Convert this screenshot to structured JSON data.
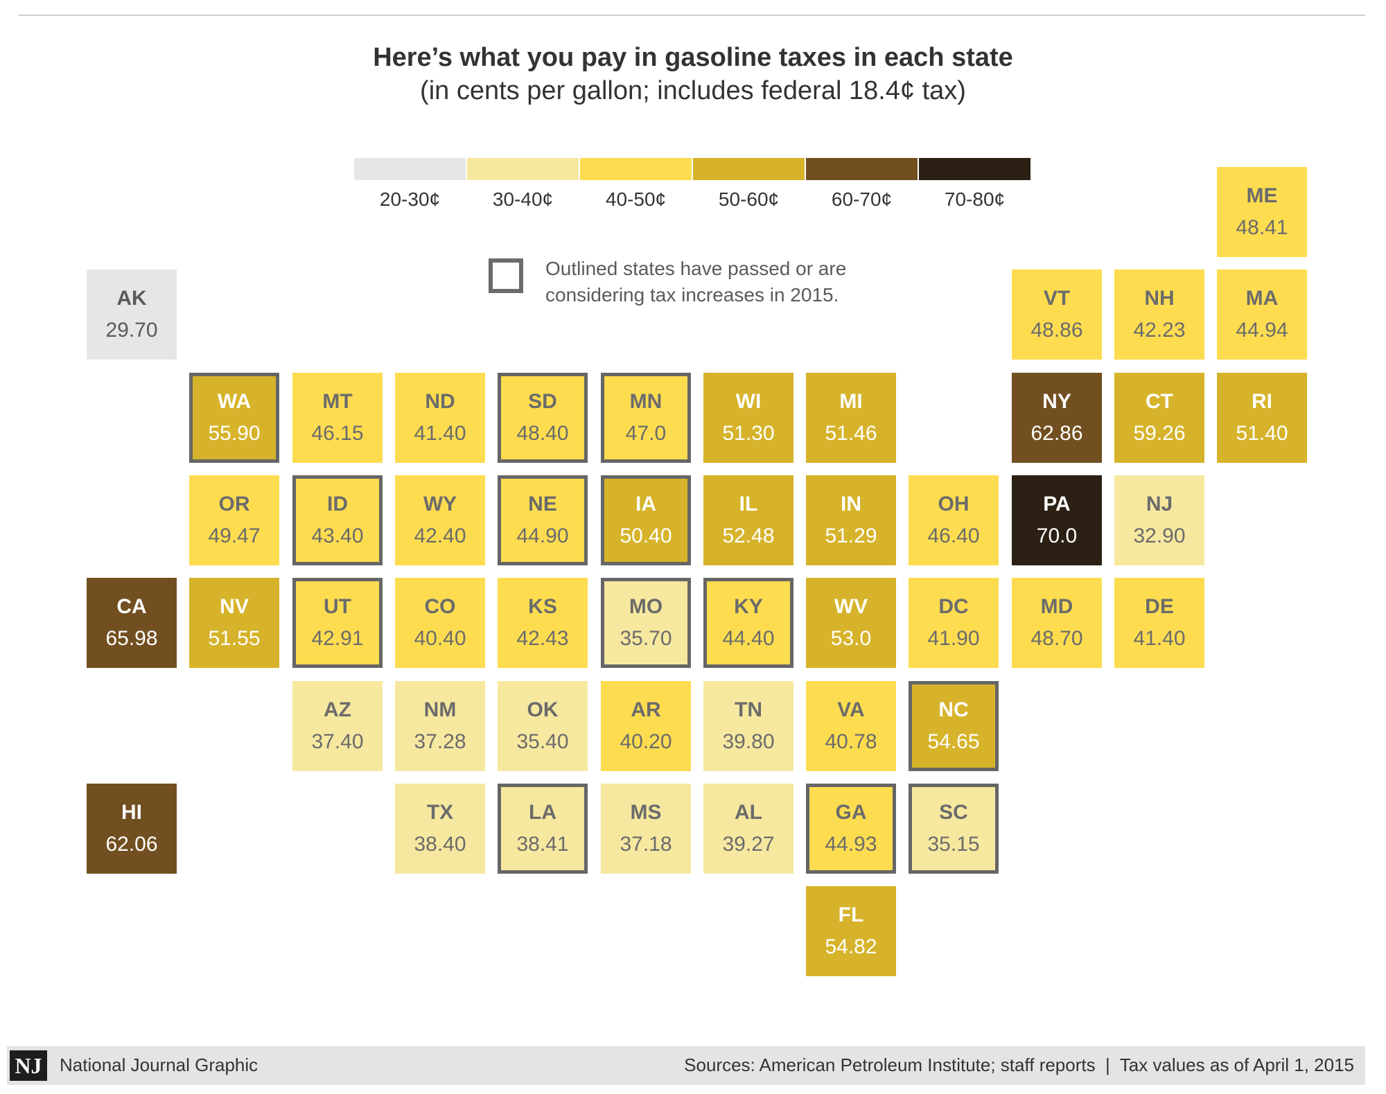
{
  "title": "Here’s what you pay in gasoline taxes in each state",
  "subtitle": "(in cents per gallon; includes federal 18.4¢ tax)",
  "legend": [
    {
      "label": "20-30¢",
      "color": "#e6e6e6"
    },
    {
      "label": "30-40¢",
      "color": "#f7e8a0"
    },
    {
      "label": "40-50¢",
      "color": "#fddc50"
    },
    {
      "label": "50-60¢",
      "color": "#d6b32a"
    },
    {
      "label": "60-70¢",
      "color": "#724f20"
    },
    {
      "label": "70-80¢",
      "color": "#2b2013"
    }
  ],
  "outline_note": "Outlined states have passed or are considering tax increases in 2015.",
  "chart_data": {
    "type": "heatmap",
    "title": "Here’s what you pay in gasoline taxes in each state",
    "unit": "cents per gallon",
    "states": [
      {
        "abbr": "ME",
        "value": "48.41",
        "col": 11,
        "row": 0,
        "outlined": false
      },
      {
        "abbr": "AK",
        "value": "29.70",
        "col": 0,
        "row": 1,
        "outlined": false
      },
      {
        "abbr": "VT",
        "value": "48.86",
        "col": 9,
        "row": 1,
        "outlined": false
      },
      {
        "abbr": "NH",
        "value": "42.23",
        "col": 10,
        "row": 1,
        "outlined": false
      },
      {
        "abbr": "MA",
        "value": "44.94",
        "col": 11,
        "row": 1,
        "outlined": false
      },
      {
        "abbr": "WA",
        "value": "55.90",
        "col": 1,
        "row": 2,
        "outlined": true
      },
      {
        "abbr": "MT",
        "value": "46.15",
        "col": 2,
        "row": 2,
        "outlined": false
      },
      {
        "abbr": "ND",
        "value": "41.40",
        "col": 3,
        "row": 2,
        "outlined": false
      },
      {
        "abbr": "SD",
        "value": "48.40",
        "col": 4,
        "row": 2,
        "outlined": true
      },
      {
        "abbr": "MN",
        "value": "47.0",
        "col": 5,
        "row": 2,
        "outlined": true
      },
      {
        "abbr": "WI",
        "value": "51.30",
        "col": 6,
        "row": 2,
        "outlined": false
      },
      {
        "abbr": "MI",
        "value": "51.46",
        "col": 7,
        "row": 2,
        "outlined": false
      },
      {
        "abbr": "NY",
        "value": "62.86",
        "col": 9,
        "row": 2,
        "outlined": false
      },
      {
        "abbr": "CT",
        "value": "59.26",
        "col": 10,
        "row": 2,
        "outlined": false
      },
      {
        "abbr": "RI",
        "value": "51.40",
        "col": 11,
        "row": 2,
        "outlined": false
      },
      {
        "abbr": "OR",
        "value": "49.47",
        "col": 1,
        "row": 3,
        "outlined": false
      },
      {
        "abbr": "ID",
        "value": "43.40",
        "col": 2,
        "row": 3,
        "outlined": true
      },
      {
        "abbr": "WY",
        "value": "42.40",
        "col": 3,
        "row": 3,
        "outlined": false
      },
      {
        "abbr": "NE",
        "value": "44.90",
        "col": 4,
        "row": 3,
        "outlined": true
      },
      {
        "abbr": "IA",
        "value": "50.40",
        "col": 5,
        "row": 3,
        "outlined": true
      },
      {
        "abbr": "IL",
        "value": "52.48",
        "col": 6,
        "row": 3,
        "outlined": false
      },
      {
        "abbr": "IN",
        "value": "51.29",
        "col": 7,
        "row": 3,
        "outlined": false
      },
      {
        "abbr": "OH",
        "value": "46.40",
        "col": 8,
        "row": 3,
        "outlined": false
      },
      {
        "abbr": "PA",
        "value": "70.0",
        "col": 9,
        "row": 3,
        "outlined": false
      },
      {
        "abbr": "NJ",
        "value": "32.90",
        "col": 10,
        "row": 3,
        "outlined": false
      },
      {
        "abbr": "CA",
        "value": "65.98",
        "col": 0,
        "row": 4,
        "outlined": false
      },
      {
        "abbr": "NV",
        "value": "51.55",
        "col": 1,
        "row": 4,
        "outlined": false
      },
      {
        "abbr": "UT",
        "value": "42.91",
        "col": 2,
        "row": 4,
        "outlined": true
      },
      {
        "abbr": "CO",
        "value": "40.40",
        "col": 3,
        "row": 4,
        "outlined": false
      },
      {
        "abbr": "KS",
        "value": "42.43",
        "col": 4,
        "row": 4,
        "outlined": false
      },
      {
        "abbr": "MO",
        "value": "35.70",
        "col": 5,
        "row": 4,
        "outlined": true
      },
      {
        "abbr": "KY",
        "value": "44.40",
        "col": 6,
        "row": 4,
        "outlined": true
      },
      {
        "abbr": "WV",
        "value": "53.0",
        "col": 7,
        "row": 4,
        "outlined": false
      },
      {
        "abbr": "DC",
        "value": "41.90",
        "col": 8,
        "row": 4,
        "outlined": false
      },
      {
        "abbr": "MD",
        "value": "48.70",
        "col": 9,
        "row": 4,
        "outlined": false
      },
      {
        "abbr": "DE",
        "value": "41.40",
        "col": 10,
        "row": 4,
        "outlined": false
      },
      {
        "abbr": "AZ",
        "value": "37.40",
        "col": 2,
        "row": 5,
        "outlined": false
      },
      {
        "abbr": "NM",
        "value": "37.28",
        "col": 3,
        "row": 5,
        "outlined": false
      },
      {
        "abbr": "OK",
        "value": "35.40",
        "col": 4,
        "row": 5,
        "outlined": false
      },
      {
        "abbr": "AR",
        "value": "40.20",
        "col": 5,
        "row": 5,
        "outlined": false
      },
      {
        "abbr": "TN",
        "value": "39.80",
        "col": 6,
        "row": 5,
        "outlined": false
      },
      {
        "abbr": "VA",
        "value": "40.78",
        "col": 7,
        "row": 5,
        "outlined": false
      },
      {
        "abbr": "NC",
        "value": "54.65",
        "col": 8,
        "row": 5,
        "outlined": true
      },
      {
        "abbr": "HI",
        "value": "62.06",
        "col": 0,
        "row": 6,
        "outlined": false
      },
      {
        "abbr": "TX",
        "value": "38.40",
        "col": 3,
        "row": 6,
        "outlined": false
      },
      {
        "abbr": "LA",
        "value": "38.41",
        "col": 4,
        "row": 6,
        "outlined": true
      },
      {
        "abbr": "MS",
        "value": "37.18",
        "col": 5,
        "row": 6,
        "outlined": false
      },
      {
        "abbr": "AL",
        "value": "39.27",
        "col": 6,
        "row": 6,
        "outlined": false
      },
      {
        "abbr": "GA",
        "value": "44.93",
        "col": 7,
        "row": 6,
        "outlined": true
      },
      {
        "abbr": "SC",
        "value": "35.15",
        "col": 8,
        "row": 6,
        "outlined": true
      },
      {
        "abbr": "FL",
        "value": "54.82",
        "col": 7,
        "row": 7,
        "outlined": false
      }
    ]
  },
  "footer": {
    "logo": "NJ",
    "credit": "National Journal Graphic",
    "sources": "Sources: American Petroleum Institute; staff reports  |  Tax values as of April 1, 2015"
  }
}
